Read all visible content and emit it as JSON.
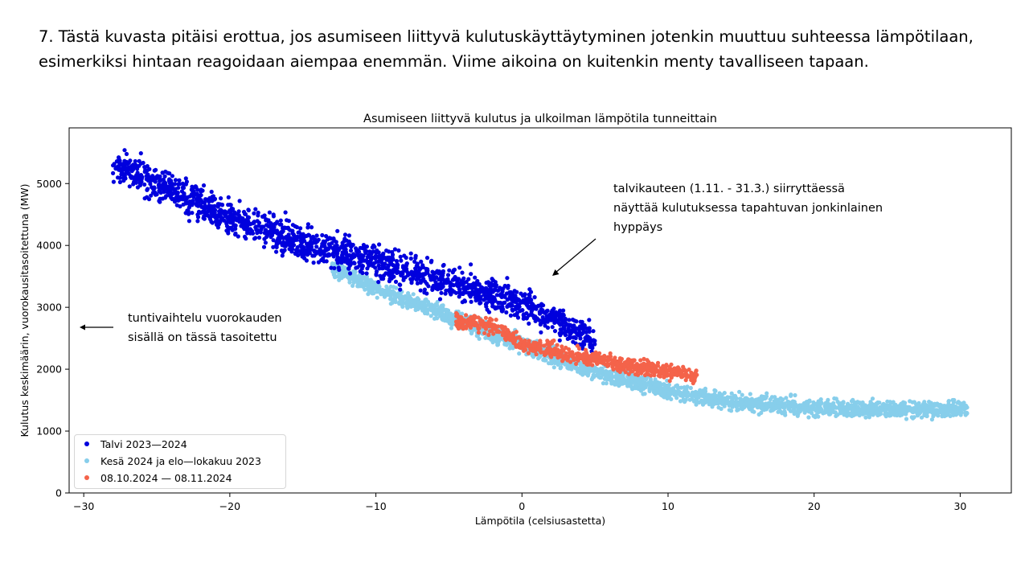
{
  "heading": {
    "line1": "7. Tästä kuvasta pitäisi erottua, jos asumiseen liittyvä kulutuskäyttäytyminen jotenkin muuttuu suhteessa lämpötilaan,",
    "line2": "esimerkiksi hintaan reagoidaan aiempaa enemmän. Viime aikoina on kuitenkin menty tavalliseen tapaan."
  },
  "annotations": {
    "hourly": {
      "line1": "tuntivaihtelu vuorokauden",
      "line2": "sisällä on tässä tasoitettu"
    },
    "winter": {
      "line1": "talvikauteen (1.11. - 31.3.) siirryttäessä",
      "line2": "näyttää kulutuksessa tapahtuvan jonkinlainen",
      "line3": "hyppäys"
    }
  },
  "chart_data": {
    "type": "scatter",
    "title": "Asumiseen liittyvä kulutus ja ulkoilman lämpötila tunneittain",
    "xlabel": "Lämpötila (celsiusastetta)",
    "ylabel": "Kulutus keskimäärin, vuorokausitasoitettuna (MW)",
    "xlim": [
      -31,
      33.5
    ],
    "ylim": [
      0,
      5900
    ],
    "xticks": [
      -30,
      -20,
      -10,
      0,
      10,
      20,
      30
    ],
    "xtick_labels": [
      "−30",
      "−20",
      "−10",
      "0",
      "10",
      "20",
      "30"
    ],
    "yticks": [
      0,
      1000,
      2000,
      3000,
      4000,
      5000
    ],
    "ytick_labels": [
      "0",
      "1000",
      "2000",
      "3000",
      "4000",
      "5000"
    ],
    "legend_position": "lower-left",
    "series": [
      {
        "name": "Talvi 2023—2024",
        "color": "#0000dd",
        "x_range": [
          -28,
          5
        ],
        "curve": [
          [
            -28,
            5300
          ],
          [
            -25,
            5000
          ],
          [
            -20,
            4450
          ],
          [
            -15,
            4050
          ],
          [
            -10,
            3750
          ],
          [
            -5,
            3400
          ],
          [
            0,
            3050
          ],
          [
            3,
            2700
          ],
          [
            5,
            2450
          ]
        ],
        "spread": 260,
        "count": 1700
      },
      {
        "name": "Kesä 2024 ja elo—lokakuu 2023",
        "color": "#87ceeb",
        "x_range": [
          -13,
          30.5
        ],
        "curve": [
          [
            -13,
            3650
          ],
          [
            -10,
            3300
          ],
          [
            -5,
            2850
          ],
          [
            0,
            2400
          ],
          [
            5,
            1950
          ],
          [
            10,
            1650
          ],
          [
            15,
            1450
          ],
          [
            20,
            1380
          ],
          [
            25,
            1360
          ],
          [
            30,
            1350
          ]
        ],
        "spread": 130,
        "count": 2400
      },
      {
        "name": "08.10.2024 — 08.11.2024",
        "color": "#f4634a",
        "x_range": [
          -4.5,
          12
        ],
        "curve": [
          [
            -4.5,
            2800
          ],
          [
            -2,
            2700
          ],
          [
            0,
            2400
          ],
          [
            3,
            2250
          ],
          [
            6,
            2120
          ],
          [
            9,
            2000
          ],
          [
            12,
            1880
          ]
        ],
        "spread": 120,
        "count": 700
      }
    ]
  }
}
